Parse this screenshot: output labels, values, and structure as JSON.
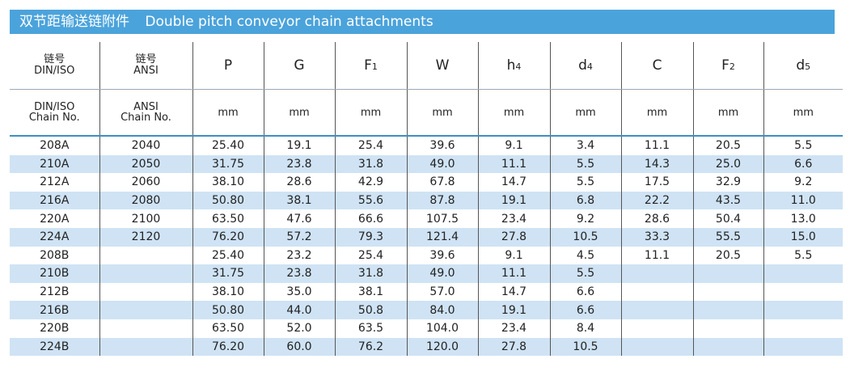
{
  "title": {
    "zh": "双节距输送链附件",
    "en": "Double pitch conveyor chain attachments"
  },
  "header": {
    "col0": {
      "zh": "链号",
      "en": "DIN/ISO"
    },
    "col1": {
      "zh": "链号",
      "en": "ANSI"
    },
    "dims": [
      {
        "base": "P",
        "sub": ""
      },
      {
        "base": "G",
        "sub": ""
      },
      {
        "base": "F",
        "sub": "1"
      },
      {
        "base": "W",
        "sub": ""
      },
      {
        "base": "h",
        "sub": "4"
      },
      {
        "base": "d",
        "sub": "4"
      },
      {
        "base": "C",
        "sub": ""
      },
      {
        "base": "F",
        "sub": "2"
      },
      {
        "base": "d",
        "sub": "5"
      }
    ],
    "units": {
      "col0": {
        "l1": "DIN/ISO",
        "l2": "Chain No."
      },
      "col1": {
        "l1": "ANSI",
        "l2": "Chain No."
      },
      "unit": "mm"
    }
  },
  "rows": [
    [
      "208A",
      "2040",
      "25.40",
      "19.1",
      "25.4",
      "39.6",
      "9.1",
      "3.4",
      "11.1",
      "20.5",
      "5.5"
    ],
    [
      "210A",
      "2050",
      "31.75",
      "23.8",
      "31.8",
      "49.0",
      "11.1",
      "5.5",
      "14.3",
      "25.0",
      "6.6"
    ],
    [
      "212A",
      "2060",
      "38.10",
      "28.6",
      "42.9",
      "67.8",
      "14.7",
      "5.5",
      "17.5",
      "32.9",
      "9.2"
    ],
    [
      "216A",
      "2080",
      "50.80",
      "38.1",
      "55.6",
      "87.8",
      "19.1",
      "6.8",
      "22.2",
      "43.5",
      "11.0"
    ],
    [
      "220A",
      "2100",
      "63.50",
      "47.6",
      "66.6",
      "107.5",
      "23.4",
      "9.2",
      "28.6",
      "50.4",
      "13.0"
    ],
    [
      "224A",
      "2120",
      "76.20",
      "57.2",
      "79.3",
      "121.4",
      "27.8",
      "10.5",
      "33.3",
      "55.5",
      "15.0"
    ],
    [
      "208B",
      "",
      "25.40",
      "23.2",
      "25.4",
      "39.6",
      "9.1",
      "4.5",
      "11.1",
      "20.5",
      "5.5"
    ],
    [
      "210B",
      "",
      "31.75",
      "23.8",
      "31.8",
      "49.0",
      "11.1",
      "5.5",
      "",
      "",
      ""
    ],
    [
      "212B",
      "",
      "38.10",
      "35.0",
      "38.1",
      "57.0",
      "14.7",
      "6.6",
      "",
      "",
      ""
    ],
    [
      "216B",
      "",
      "50.80",
      "44.0",
      "50.8",
      "84.0",
      "19.1",
      "6.6",
      "",
      "",
      ""
    ],
    [
      "220B",
      "",
      "63.50",
      "52.0",
      "63.5",
      "104.0",
      "23.4",
      "8.4",
      "",
      "",
      ""
    ],
    [
      "224B",
      "",
      "76.20",
      "60.0",
      "76.2",
      "120.0",
      "27.8",
      "10.5",
      "",
      "",
      ""
    ]
  ],
  "colors": {
    "title_bg": "#4ba3db",
    "stripe": "#cfe3f4"
  }
}
